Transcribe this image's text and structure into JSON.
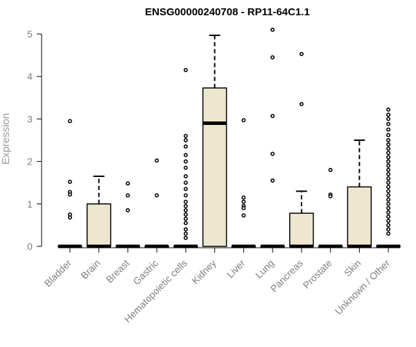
{
  "chart_data": {
    "type": "box",
    "title": "ENSG00000240708 - RP11-64C1.1",
    "ylabel": "Expression",
    "xlabel": "",
    "ylim": [
      0,
      5
    ],
    "yticks": [
      0,
      1,
      2,
      3,
      4,
      5
    ],
    "box_color": "#ede7cf",
    "categories": [
      "Bladder",
      "Brain",
      "Breast",
      "Gastric",
      "Hematopoietic cells",
      "Kidney",
      "Liver",
      "Lung",
      "Pancreas",
      "Prostate",
      "Skin",
      "Unknown / Other"
    ],
    "boxes": [
      {
        "q1": 0,
        "median": 0,
        "q3": 0,
        "whisker_low": 0,
        "whisker_high": 0,
        "outliers": [
          2.95,
          1.52,
          1.28,
          1.22,
          0.75,
          0.68
        ]
      },
      {
        "q1": 0,
        "median": 0,
        "q3": 1.0,
        "whisker_low": 0,
        "whisker_high": 1.65,
        "outliers": []
      },
      {
        "q1": 0,
        "median": 0,
        "q3": 0,
        "whisker_low": 0,
        "whisker_high": 0,
        "outliers": [
          1.48,
          1.2,
          0.85
        ]
      },
      {
        "q1": 0,
        "median": 0,
        "q3": 0,
        "whisker_low": 0,
        "whisker_high": 0,
        "outliers": [
          2.02,
          1.2
        ]
      },
      {
        "q1": 0,
        "median": 0,
        "q3": 0,
        "whisker_low": 0,
        "whisker_high": 0,
        "outliers": [
          4.15,
          2.6,
          2.5,
          2.35,
          2.15,
          2.0,
          1.85,
          1.65,
          1.5,
          1.35,
          1.2,
          1.05,
          0.95,
          0.85,
          0.75,
          0.65,
          0.55,
          0.4,
          0.3,
          0.2
        ]
      },
      {
        "q1": 0,
        "median": 2.9,
        "q3": 3.73,
        "whisker_low": 0,
        "whisker_high": 4.97,
        "outliers": []
      },
      {
        "q1": 0,
        "median": 0,
        "q3": 0,
        "whisker_low": 0,
        "whisker_high": 0,
        "outliers": [
          2.97,
          1.15,
          1.05,
          0.95,
          0.9,
          0.73
        ]
      },
      {
        "q1": 0,
        "median": 0,
        "q3": 0,
        "whisker_low": 0,
        "whisker_high": 0,
        "outliers": [
          5.1,
          4.45,
          3.07,
          2.18,
          1.55
        ]
      },
      {
        "q1": 0,
        "median": 0,
        "q3": 0.78,
        "whisker_low": 0,
        "whisker_high": 1.3,
        "outliers": [
          4.53,
          3.35
        ]
      },
      {
        "q1": 0,
        "median": 0,
        "q3": 0,
        "whisker_low": 0,
        "whisker_high": 0,
        "outliers": [
          1.8,
          1.22,
          1.18
        ]
      },
      {
        "q1": 0,
        "median": 0,
        "q3": 1.4,
        "whisker_low": 0,
        "whisker_high": 2.5,
        "outliers": []
      },
      {
        "q1": 0,
        "median": 0,
        "q3": 0,
        "whisker_low": 0,
        "whisker_high": 0,
        "outliers": [
          3.22,
          3.1,
          3.0,
          2.88,
          2.75,
          2.62,
          2.5,
          2.4,
          2.3,
          2.2,
          2.1,
          2.0,
          1.9,
          1.8,
          1.7,
          1.6,
          1.5,
          1.4,
          1.3,
          1.2,
          1.1,
          1.0,
          0.9,
          0.8,
          0.7,
          0.6,
          0.5,
          0.4,
          0.3
        ]
      }
    ]
  }
}
